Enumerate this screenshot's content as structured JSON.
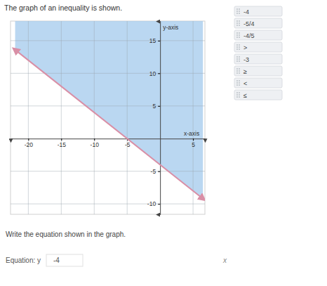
{
  "header": {
    "title": "The graph of an inequality is shown."
  },
  "chart_data": {
    "type": "inequality",
    "x": [
      -22,
      6.5
    ],
    "values": [
      13.6,
      -9.2
    ],
    "color": "#d98fa6",
    "line_style": "solid",
    "xlim": [
      -22.7,
      6.8
    ],
    "ylim": [
      -11.6,
      18
    ],
    "xticks": [
      -20,
      -15,
      -10,
      -5,
      5
    ],
    "yticks": [
      -10,
      -5,
      5,
      10,
      15
    ],
    "grid": true,
    "x_label": "x-axis",
    "y_label": "y-axis"
  },
  "prompt": "Write the equation shown in the graph.",
  "equation": {
    "label": "Equation: y",
    "answer": "-4",
    "variable": "x"
  },
  "options": [
    "-4",
    "-5/4",
    "-4/5",
    ">",
    "-3",
    "≥",
    "<",
    "≤"
  ]
}
